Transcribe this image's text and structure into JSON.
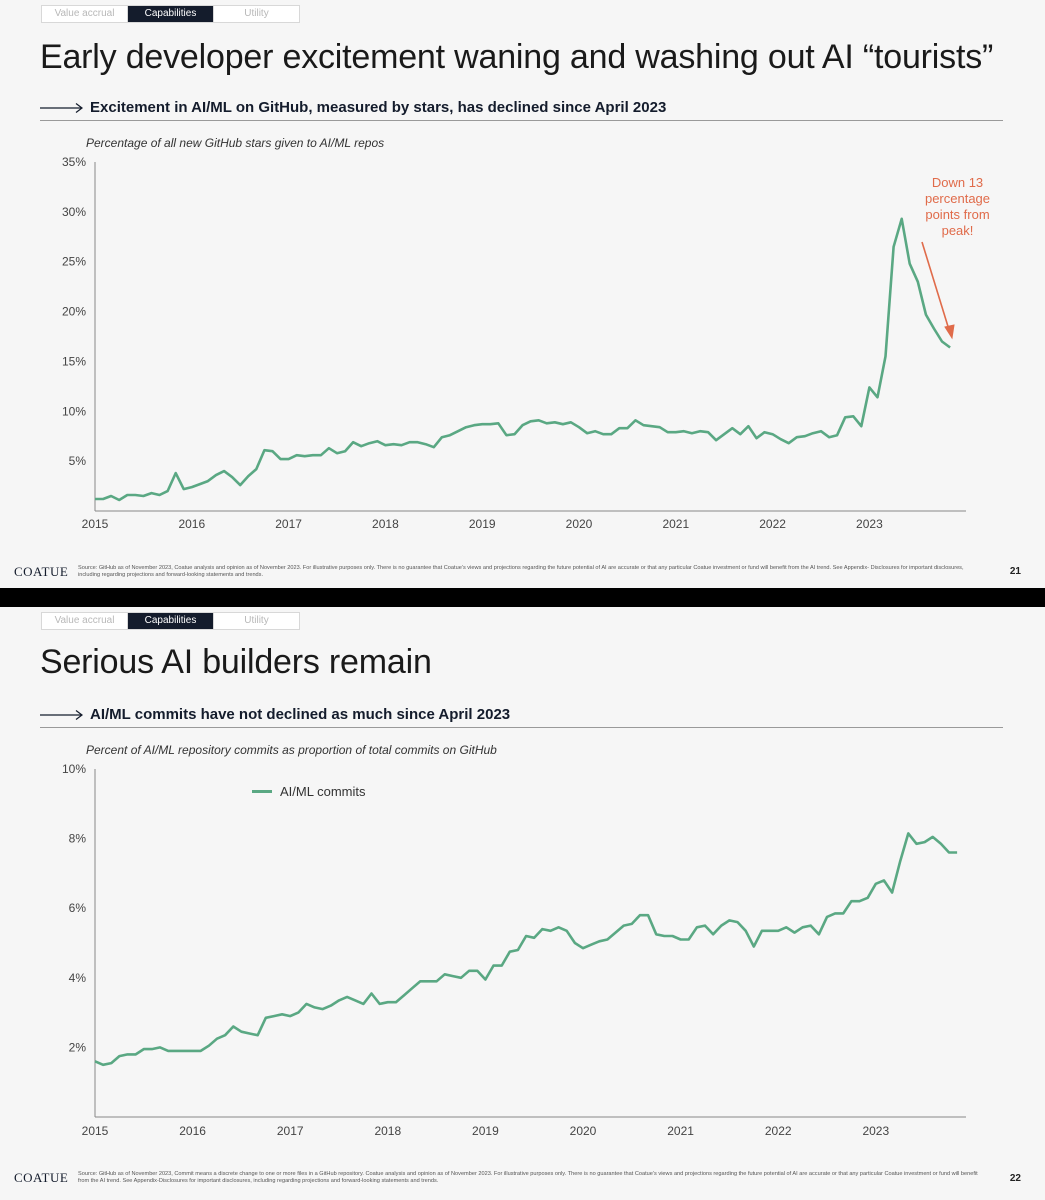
{
  "slide1": {
    "tabs": [
      {
        "label": "Value accrual",
        "active": false
      },
      {
        "label": "Capabilities",
        "active": true
      },
      {
        "label": "Utility",
        "active": false
      }
    ],
    "title": "Early developer excitement waning and washing out AI “tourists”",
    "subtitle": "Excitement in AI/ML on GitHub, measured by stars, has declined since April 2023",
    "annotation": "Down 13 percentage points from peak!",
    "footer": {
      "logo": "COATUE",
      "text": "Source: GitHub as of November 2023, Coatue analysis and opinion as of November 2023. For illustrative purposes only. There is no guarantee that Coatue’s views and projections regarding the future potential of AI are accurate or that any particular Coatue investment or fund will benefit from the AI trend. See Appendix- Disclosures for important disclosures, including regarding projections and forward-looking statements and trends.",
      "page": "21"
    }
  },
  "slide2": {
    "tabs": [
      {
        "label": "Value accrual",
        "active": false
      },
      {
        "label": "Capabilities",
        "active": true
      },
      {
        "label": "Utility",
        "active": false
      }
    ],
    "title": "Serious AI builders remain",
    "subtitle": "AI/ML commits have not declined as much since April 2023",
    "footer": {
      "logo": "COATUE",
      "text": "Source: GitHub as of November 2023, Commit means a discrete change to one or more files in a GitHub repository. Coatue analysis and opinion as of November 2023. For illustrative purposes only. There is no guarantee that Coatue’s views and projections regarding the future potential of AI are accurate or that any particular Coatue investment or fund will benefit from the AI trend. See Appendix-Disclosures for important disclosures, including regarding projections and forward-looking statements and trends.",
      "page": "22"
    }
  },
  "colors": {
    "line": "#5aa883",
    "annotation": "#e06b4a",
    "tab_active": "#141c2c"
  },
  "chart_data": [
    {
      "type": "line",
      "title": "Percentage of all new GitHub stars given to AI/ML repos",
      "xlabel": "",
      "ylabel": "",
      "ylim": [
        0,
        35
      ],
      "y_ticks": [
        "5%",
        "10%",
        "15%",
        "20%",
        "25%",
        "30%",
        "35%"
      ],
      "y_tick_values": [
        5,
        10,
        15,
        20,
        25,
        30,
        35
      ],
      "x_ticks": [
        "2015",
        "2016",
        "2017",
        "2018",
        "2019",
        "2020",
        "2021",
        "2022",
        "2023"
      ],
      "grid": false,
      "series": [
        {
          "name": "",
          "values": [
            1.2,
            1.2,
            1.5,
            1.1,
            1.6,
            1.6,
            1.5,
            1.8,
            1.6,
            2.0,
            3.8,
            2.2,
            2.4,
            2.7,
            3.0,
            3.6,
            4.0,
            3.4,
            2.6,
            3.5,
            4.2,
            6.1,
            6.0,
            5.2,
            5.2,
            5.6,
            5.5,
            5.6,
            5.6,
            6.3,
            5.8,
            6.0,
            6.9,
            6.5,
            6.8,
            7.0,
            6.6,
            6.7,
            6.6,
            6.9,
            6.9,
            6.7,
            6.4,
            7.4,
            7.6,
            8.0,
            8.4,
            8.6,
            8.7,
            8.7,
            8.8,
            7.6,
            7.7,
            8.6,
            9.0,
            9.1,
            8.8,
            8.9,
            8.7,
            8.9,
            8.4,
            7.8,
            8.0,
            7.7,
            7.7,
            8.3,
            8.3,
            9.1,
            8.6,
            8.5,
            8.4,
            7.9,
            7.9,
            8.0,
            7.8,
            8.0,
            7.9,
            7.1,
            7.7,
            8.3,
            7.7,
            8.5,
            7.3,
            7.9,
            7.7,
            7.2,
            6.8,
            7.4,
            7.5,
            7.8,
            8.0,
            7.4,
            7.6,
            9.4,
            9.5,
            8.5,
            12.4,
            11.4,
            15.5,
            26.5,
            29.3,
            24.8,
            23.0,
            19.7,
            18.3,
            17.0,
            16.4
          ]
        }
      ]
    },
    {
      "type": "line",
      "title": "Percent of AI/ML repository commits as proportion of total commits on GitHub",
      "xlabel": "",
      "ylabel": "",
      "ylim": [
        0,
        10
      ],
      "y_ticks": [
        "2%",
        "4%",
        "6%",
        "8%",
        "10%"
      ],
      "y_tick_values": [
        2,
        4,
        6,
        8,
        10
      ],
      "x_ticks": [
        "2015",
        "2016",
        "2017",
        "2018",
        "2019",
        "2020",
        "2021",
        "2022",
        "2023"
      ],
      "grid": false,
      "legend": "top-left",
      "series": [
        {
          "name": "AI/ML commits",
          "values": [
            1.6,
            1.5,
            1.55,
            1.75,
            1.8,
            1.8,
            1.95,
            1.95,
            2.0,
            1.9,
            1.9,
            1.9,
            1.9,
            1.9,
            2.05,
            2.25,
            2.35,
            2.6,
            2.45,
            2.4,
            2.35,
            2.85,
            2.9,
            2.95,
            2.9,
            3.0,
            3.25,
            3.15,
            3.1,
            3.2,
            3.35,
            3.45,
            3.35,
            3.25,
            3.55,
            3.25,
            3.3,
            3.3,
            3.5,
            3.7,
            3.9,
            3.9,
            3.9,
            4.1,
            4.05,
            4.0,
            4.2,
            4.2,
            3.95,
            4.35,
            4.35,
            4.75,
            4.8,
            5.2,
            5.15,
            5.4,
            5.35,
            5.45,
            5.35,
            5.0,
            4.85,
            4.95,
            5.05,
            5.1,
            5.3,
            5.5,
            5.55,
            5.8,
            5.8,
            5.25,
            5.2,
            5.2,
            5.1,
            5.1,
            5.45,
            5.5,
            5.25,
            5.5,
            5.65,
            5.6,
            5.35,
            4.9,
            5.35,
            5.35,
            5.35,
            5.45,
            5.3,
            5.45,
            5.5,
            5.25,
            5.75,
            5.85,
            5.85,
            6.2,
            6.2,
            6.3,
            6.7,
            6.8,
            6.45,
            7.35,
            8.15,
            7.85,
            7.9,
            8.05,
            7.85,
            7.6,
            7.6
          ]
        }
      ]
    }
  ]
}
